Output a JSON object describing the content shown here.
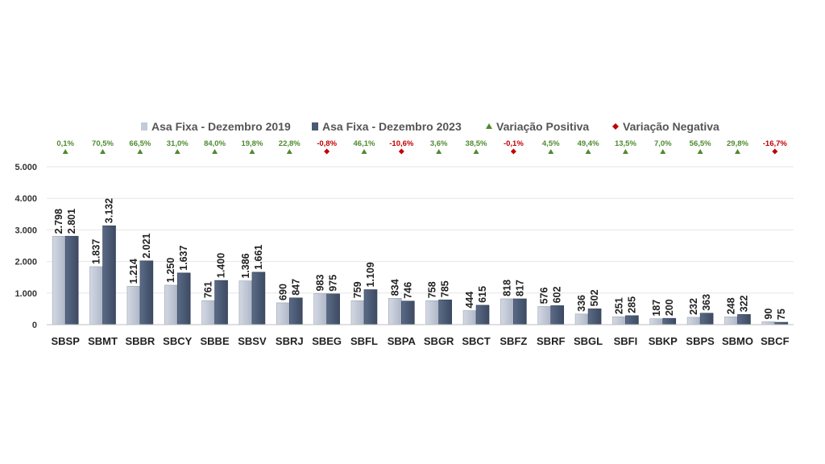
{
  "chart_data": {
    "type": "bar",
    "categories": [
      "SBSP",
      "SBMT",
      "SBBR",
      "SBCY",
      "SBBE",
      "SBSV",
      "SBRJ",
      "SBEG",
      "SBFL",
      "SBPA",
      "SBGR",
      "SBCT",
      "SBFZ",
      "SBRF",
      "SBGL",
      "SBFI",
      "SBKP",
      "SBPS",
      "SBMO",
      "SBCF"
    ],
    "series": [
      {
        "name": "Asa Fixa - Dezembro 2019",
        "color": "#c3cad8",
        "values": [
          2798,
          1837,
          1214,
          1250,
          761,
          1386,
          690,
          983,
          759,
          834,
          758,
          444,
          818,
          576,
          336,
          251,
          187,
          232,
          248,
          90
        ],
        "labels": [
          "2.798",
          "1.837",
          "1.214",
          "1.250",
          "761",
          "1.386",
          "690",
          "983",
          "759",
          "834",
          "758",
          "444",
          "818",
          "576",
          "336",
          "251",
          "187",
          "232",
          "248",
          "90"
        ]
      },
      {
        "name": "Asa Fixa - Dezembro 2023",
        "color": "#4a5a74",
        "values": [
          2801,
          3132,
          2021,
          1637,
          1400,
          1661,
          847,
          975,
          1109,
          746,
          785,
          615,
          817,
          602,
          502,
          285,
          200,
          363,
          322,
          75
        ],
        "labels": [
          "2.801",
          "3.132",
          "2.021",
          "1.637",
          "1.400",
          "1.661",
          "847",
          "975",
          "1.109",
          "746",
          "785",
          "615",
          "817",
          "602",
          "502",
          "285",
          "200",
          "363",
          "322",
          "75"
        ]
      }
    ],
    "variation": {
      "labels": [
        "0,1%",
        "70,5%",
        "66,5%",
        "31,0%",
        "84,0%",
        "19,8%",
        "22,8%",
        "-0,8%",
        "46,1%",
        "-10,6%",
        "3,6%",
        "38,5%",
        "-0,1%",
        "4,5%",
        "49,4%",
        "13,5%",
        "7,0%",
        "56,5%",
        "29,8%",
        "-16,7%"
      ],
      "positive": [
        true,
        true,
        true,
        true,
        true,
        true,
        true,
        false,
        true,
        false,
        true,
        true,
        false,
        true,
        true,
        true,
        true,
        true,
        true,
        false
      ]
    },
    "legend": [
      {
        "label": "Asa Fixa - Dezembro 2019",
        "marker": "square",
        "color": "#c3cad8"
      },
      {
        "label": "Asa Fixa - Dezembro 2023",
        "marker": "square",
        "color": "#4a5a74"
      },
      {
        "label": "Variação Positiva",
        "marker": "triangle",
        "color": "#4e8a2e"
      },
      {
        "label": "Variação Negativa",
        "marker": "diamond",
        "color": "#c00000"
      }
    ],
    "legend_position": "top",
    "y_ticks": [
      0,
      1000,
      2000,
      3000,
      4000,
      5000
    ],
    "y_tick_labels": [
      "0",
      "1.000",
      "2.000",
      "3.000",
      "4.000",
      "5.000"
    ],
    "ylim": [
      0,
      5000
    ],
    "grid": true,
    "colors": {
      "positive": "#4e8a2e",
      "negative": "#c00000",
      "grid": "#e6e6e6",
      "axis": "#bfbfbf"
    }
  }
}
